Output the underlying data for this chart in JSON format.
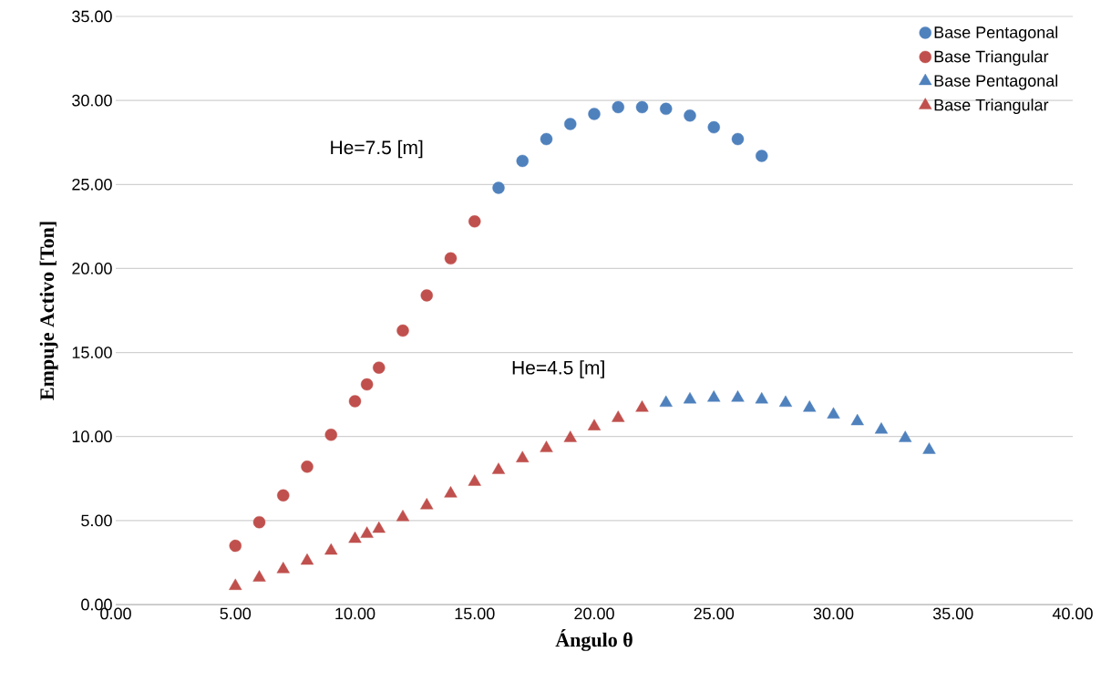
{
  "chart_data": {
    "type": "scatter",
    "xlabel": "Ángulo θ",
    "ylabel": "Empuje Activo [Ton]",
    "annotations": [
      "He=7.5 [m]",
      "He=4.5 [m]"
    ],
    "xlim": [
      0,
      40
    ],
    "ylim": [
      0,
      35
    ],
    "xticks": [
      {
        "value": 0,
        "label": "0.00"
      },
      {
        "value": 5,
        "label": "5.00"
      },
      {
        "value": 10,
        "label": "10.00"
      },
      {
        "value": 15,
        "label": "15.00"
      },
      {
        "value": 20,
        "label": "20.00"
      },
      {
        "value": 25,
        "label": "25.00"
      },
      {
        "value": 30,
        "label": "30.00"
      },
      {
        "value": 35,
        "label": "35.00"
      },
      {
        "value": 40,
        "label": "40.00"
      }
    ],
    "yticks": [
      {
        "value": 0,
        "label": "0.00"
      },
      {
        "value": 5,
        "label": "5.00"
      },
      {
        "value": 10,
        "label": "10.00"
      },
      {
        "value": 15,
        "label": "15.00"
      },
      {
        "value": 20,
        "label": "20.00"
      },
      {
        "value": 25,
        "label": "25.00"
      },
      {
        "value": 30,
        "label": "30.00"
      },
      {
        "value": 35,
        "label": "35.00"
      }
    ],
    "grid": "y",
    "legend": "top right",
    "series": [
      {
        "name": "Base Pentagonal",
        "color": "#4f81bd",
        "marker": "circle",
        "x": [
          16,
          17,
          18,
          19,
          20,
          21,
          22,
          23,
          24,
          25,
          26,
          27
        ],
        "values": [
          24.8,
          26.4,
          27.7,
          28.6,
          29.2,
          29.6,
          29.6,
          29.5,
          29.1,
          28.4,
          27.7,
          26.7
        ]
      },
      {
        "name": "Base Triangular",
        "color": "#c0504d",
        "marker": "circle",
        "x": [
          5,
          6,
          7,
          8,
          9,
          10,
          10.5,
          11,
          12,
          13,
          14,
          15
        ],
        "values": [
          3.5,
          4.9,
          6.5,
          8.2,
          10.1,
          12.1,
          13.1,
          14.1,
          16.3,
          18.4,
          20.6,
          22.8
        ]
      },
      {
        "name": "Base Pentagonal",
        "color": "#4f81bd",
        "marker": "triangle",
        "x": [
          23,
          24,
          25,
          26,
          27,
          28,
          29,
          30,
          31,
          32,
          33,
          34
        ],
        "values": [
          12.0,
          12.2,
          12.3,
          12.3,
          12.2,
          12.0,
          11.7,
          11.3,
          10.9,
          10.4,
          9.9,
          9.2
        ]
      },
      {
        "name": "Base Triangular",
        "color": "#c0504d",
        "marker": "triangle",
        "x": [
          5,
          6,
          7,
          8,
          9,
          10,
          10.5,
          11,
          12,
          13,
          14,
          15,
          16,
          17,
          18,
          19,
          20,
          21,
          22
        ],
        "values": [
          1.1,
          1.6,
          2.1,
          2.6,
          3.2,
          3.9,
          4.2,
          4.5,
          5.2,
          5.9,
          6.6,
          7.3,
          8.0,
          8.7,
          9.3,
          9.9,
          10.6,
          11.1,
          11.7
        ]
      }
    ]
  }
}
